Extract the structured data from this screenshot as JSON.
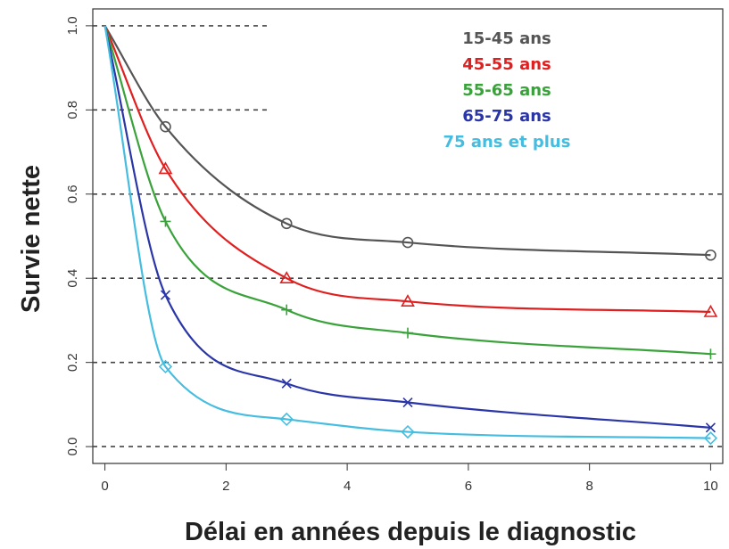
{
  "chart_data": {
    "type": "line",
    "title": "",
    "xlabel": "Délai en années depuis le diagnostic",
    "ylabel": "Survie nette",
    "xlim": [
      -0.2,
      10.2
    ],
    "ylim": [
      -0.04,
      1.04
    ],
    "x_ticks": [
      0,
      2,
      4,
      6,
      8,
      10
    ],
    "x_tick_labels": [
      "0",
      "2",
      "4",
      "6",
      "8",
      "10"
    ],
    "y_ticks": [
      0.0,
      0.2,
      0.4,
      0.6,
      0.8,
      1.0
    ],
    "y_tick_labels": [
      "0.0",
      "0.2",
      "0.4",
      "0.6",
      "0.8",
      "1.0"
    ],
    "reference_lines": [
      0.0,
      0.2,
      0.4,
      0.6,
      0.8,
      1.0
    ],
    "legend_position": "top-right",
    "series": [
      {
        "name": "15-45 ans",
        "color": "#555555",
        "marker": "circle",
        "x": [
          0,
          1,
          3,
          5,
          10
        ],
        "y": [
          1.0,
          0.76,
          0.53,
          0.485,
          0.455
        ]
      },
      {
        "name": "45-55 ans",
        "color": "#e02020",
        "marker": "triangle",
        "x": [
          0,
          1,
          3,
          5,
          10
        ],
        "y": [
          1.0,
          0.66,
          0.4,
          0.345,
          0.32
        ]
      },
      {
        "name": "55-65 ans",
        "color": "#3aa23a",
        "marker": "plus",
        "x": [
          0,
          1,
          3,
          5,
          10
        ],
        "y": [
          1.0,
          0.535,
          0.325,
          0.27,
          0.22
        ]
      },
      {
        "name": "65-75 ans",
        "color": "#2a36a8",
        "marker": "cross",
        "x": [
          0,
          1,
          3,
          5,
          10
        ],
        "y": [
          1.0,
          0.36,
          0.15,
          0.105,
          0.045
        ]
      },
      {
        "name": "75 ans et plus",
        "color": "#45bde0",
        "marker": "diamond",
        "x": [
          0,
          1,
          3,
          5,
          10
        ],
        "y": [
          1.0,
          0.19,
          0.065,
          0.035,
          0.02
        ]
      }
    ]
  }
}
